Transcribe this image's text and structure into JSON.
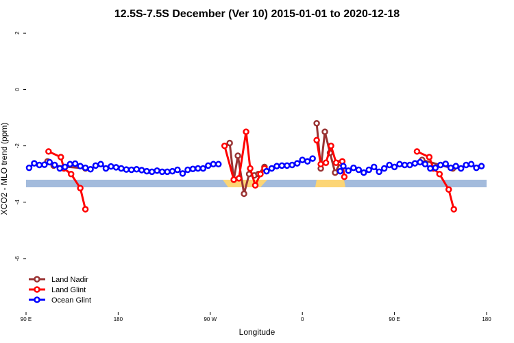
{
  "chart_data": {
    "type": "line",
    "title": "12.5S-7.5S December (Ver 10)   2015-01-01 to 2020-12-18",
    "x_label": "Longitude",
    "y_label": "XCO2 - MLO trend (ppm)",
    "xlim": [
      90,
      540
    ],
    "ylim": [
      -7.9,
      2.25
    ],
    "xticks": [
      {
        "value": 90,
        "label": "90 E"
      },
      180,
      {
        "value": 270,
        "label": "90 W"
      },
      {
        "value": 360,
        "label": "0"
      },
      {
        "value": 450,
        "label": "90 E"
      },
      {
        "value": 540,
        "label": "180"
      }
    ],
    "yticks": [
      2,
      0,
      -2,
      -4,
      -6
    ],
    "legend": "bottom-left",
    "series": [
      {
        "name": "Land Nadir",
        "color": "#993333",
        "x": [
          111,
          117,
          148,
          200,
          289,
          293,
          297,
          303,
          308,
          313,
          317,
          323,
          350,
          374,
          378,
          382,
          387,
          392,
          397,
          440,
          477,
          507
        ],
        "values": [
          -2.55,
          -2.7,
          -2.8,
          null,
          -1.9,
          -3.2,
          -2.35,
          -3.7,
          -3.0,
          -3.05,
          -3.0,
          -2.75,
          null,
          -1.2,
          -2.8,
          -1.5,
          -2.25,
          -2.95,
          -2.6,
          null,
          -2.5,
          -2.8
        ]
      },
      {
        "name": "Land Glint",
        "color": "#ff0000",
        "x": [
          112,
          124,
          127,
          134,
          143,
          148,
          200,
          284,
          293,
          298,
          305,
          309,
          314,
          319,
          323,
          350,
          374,
          378,
          383,
          388,
          393,
          399,
          401,
          440,
          472,
          484,
          488,
          494,
          503,
          508
        ],
        "values": [
          -2.2,
          -2.4,
          -2.8,
          -3.0,
          -3.5,
          -4.25,
          null,
          -2.0,
          -3.2,
          -3.15,
          -1.5,
          -2.8,
          -3.4,
          -3.0,
          -2.8,
          null,
          -1.8,
          -2.65,
          -2.6,
          -2.0,
          -2.6,
          -2.55,
          -3.1,
          null,
          -2.2,
          -2.4,
          -2.8,
          -3.0,
          -3.55,
          -4.25
        ]
      },
      {
        "name": "Ocean Glint",
        "color": "#0000ff",
        "x": [
          93,
          98,
          103,
          108,
          113,
          118,
          123,
          128,
          133,
          138,
          143,
          148,
          153,
          158,
          163,
          168,
          173,
          178,
          183,
          188,
          193,
          198,
          203,
          208,
          213,
          218,
          223,
          228,
          233,
          238,
          243,
          248,
          253,
          258,
          263,
          268,
          273,
          278,
          300,
          325,
          330,
          335,
          340,
          345,
          350,
          355,
          360,
          365,
          370,
          385,
          397,
          400,
          405,
          410,
          415,
          420,
          425,
          430,
          435,
          440,
          445,
          450,
          455,
          460,
          465,
          470,
          475,
          480,
          485,
          490,
          495,
          500,
          505,
          510,
          515,
          520,
          525,
          530,
          535
        ],
        "values": [
          -2.78,
          -2.62,
          -2.68,
          -2.67,
          -2.58,
          -2.68,
          -2.8,
          -2.75,
          -2.65,
          -2.63,
          -2.72,
          -2.78,
          -2.83,
          -2.7,
          -2.65,
          -2.8,
          -2.73,
          -2.76,
          -2.8,
          -2.84,
          -2.85,
          -2.83,
          -2.86,
          -2.9,
          -2.92,
          -2.88,
          -2.92,
          -2.92,
          -2.9,
          -2.85,
          -2.98,
          -2.85,
          -2.82,
          -2.8,
          -2.8,
          -2.7,
          -2.65,
          -2.65,
          null,
          -2.9,
          -2.8,
          -2.72,
          -2.7,
          -2.7,
          -2.68,
          -2.62,
          -2.5,
          -2.55,
          -2.45,
          null,
          -2.9,
          -2.72,
          -2.88,
          -2.78,
          -2.85,
          -2.95,
          -2.85,
          -2.75,
          -2.92,
          -2.8,
          -2.68,
          -2.75,
          -2.65,
          -2.68,
          -2.68,
          -2.62,
          -2.58,
          -2.65,
          -2.8,
          -2.78,
          -2.68,
          -2.64,
          -2.78,
          -2.72,
          -2.8,
          -2.68,
          -2.65,
          -2.78,
          -2.72
        ]
      }
    ]
  }
}
